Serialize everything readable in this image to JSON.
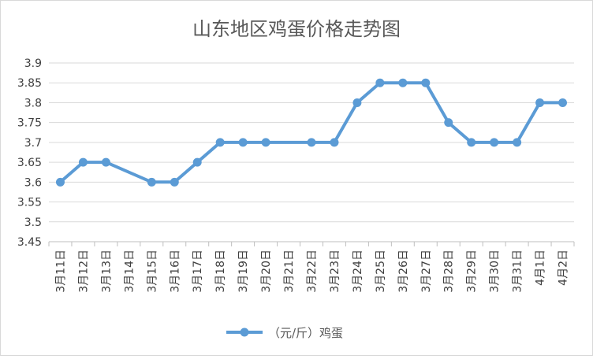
{
  "chart_data": {
    "type": "line",
    "title": "山东地区鸡蛋价格走势图",
    "xlabel": "",
    "ylabel": "",
    "categories": [
      "3月11日",
      "3月12日",
      "3月13日",
      "3月14日",
      "3月15日",
      "3月16日",
      "3月17日",
      "3月18日",
      "3月19日",
      "3月20日",
      "3月21日",
      "3月22日",
      "3月23日",
      "3月24日",
      "3月25日",
      "3月26日",
      "3月27日",
      "3月28日",
      "3月29日",
      "3月30日",
      "3月31日",
      "4月1日",
      "4月2日"
    ],
    "series": [
      {
        "name": "（元/斤）鸡蛋",
        "values": [
          3.6,
          3.65,
          3.65,
          null,
          3.6,
          3.6,
          3.65,
          3.7,
          3.7,
          3.7,
          null,
          3.7,
          3.7,
          3.8,
          3.85,
          3.85,
          3.85,
          3.75,
          3.7,
          3.7,
          3.7,
          3.8,
          3.8
        ],
        "color": "#5b9bd5"
      }
    ],
    "ylim": [
      3.45,
      3.9
    ],
    "yticks": [
      "3.9",
      "3.85",
      "3.8",
      "3.75",
      "3.7",
      "3.65",
      "3.6",
      "3.55",
      "3.5",
      "3.45"
    ],
    "grid": true,
    "legend": "bottom"
  },
  "colors": {
    "line": "#5b9bd5",
    "grid": "#d9d9d9",
    "axis": "#bfbfbf",
    "text": "#404040"
  }
}
